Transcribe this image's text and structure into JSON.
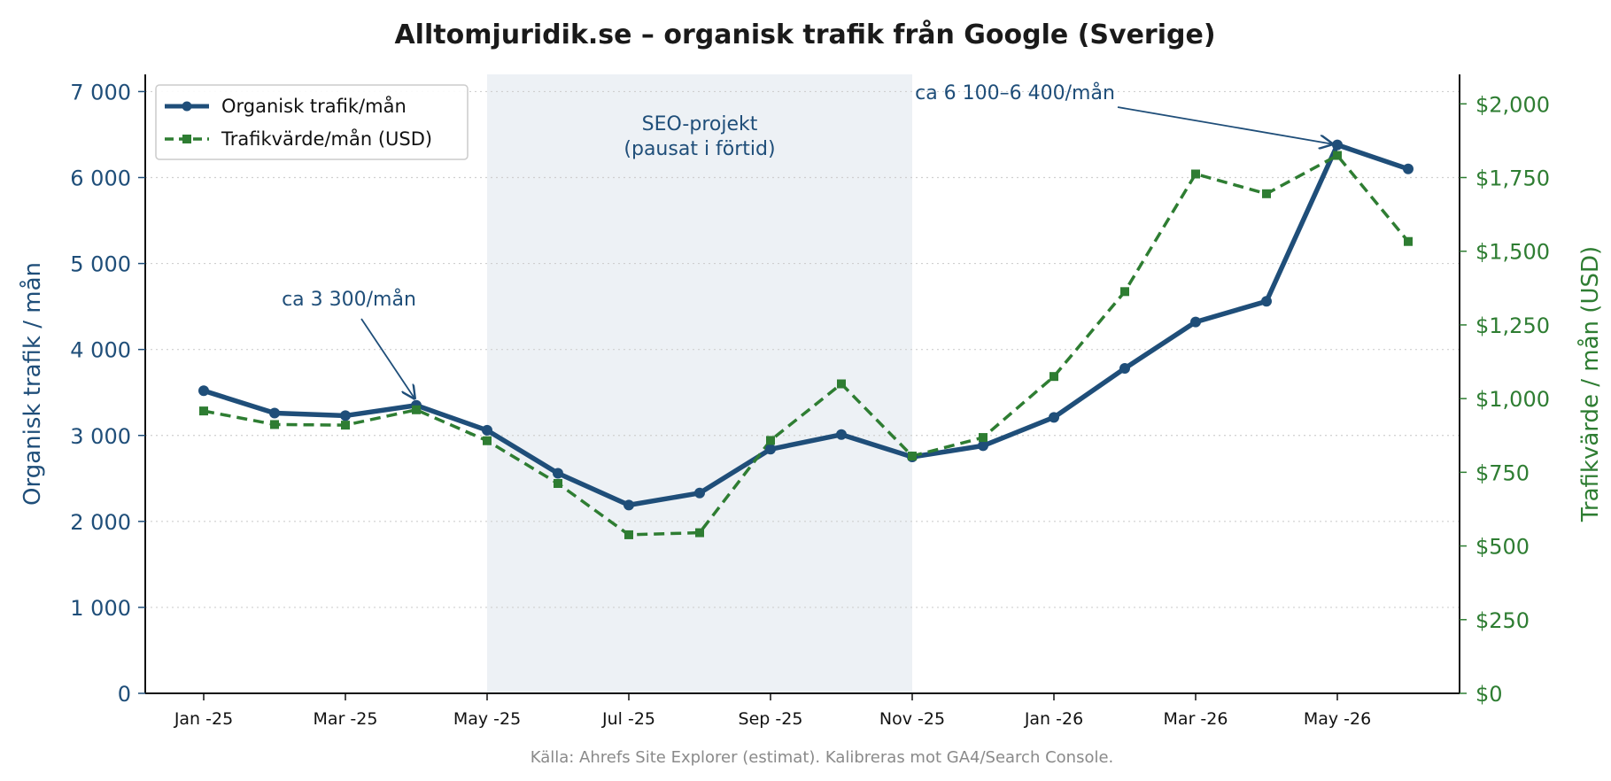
{
  "chart_data": {
    "type": "line",
    "title": "Alltomjuridik.se – organisk trafik från Google (Sverige)",
    "x": [
      "2025-01",
      "2025-02",
      "2025-03",
      "2025-04",
      "2025-05",
      "2025-06",
      "2025-07",
      "2025-08",
      "2025-09",
      "2025-10",
      "2025-11",
      "2025-12",
      "2026-01",
      "2026-02",
      "2026-03",
      "2026-04",
      "2026-05",
      "2026-06"
    ],
    "x_tick_labels": [
      "Jan -25",
      "Mar -25",
      "May -25",
      "Jul -25",
      "Sep -25",
      "Nov -25",
      "Jan -26",
      "Mar -26",
      "May -26"
    ],
    "ylabel": "Organisk trafik / mån",
    "ylabel_right": "Trafikvärde / mån (USD)",
    "ylim": [
      0,
      7200
    ],
    "ylim_right": [
      0,
      2100
    ],
    "y_ticks": [
      "0",
      "1 000",
      "2 000",
      "3 000",
      "4 000",
      "5 000",
      "6 000",
      "7 000"
    ],
    "y_ticks_right": [
      "$0",
      "$250",
      "$500",
      "$750",
      "$1,000",
      "$1,250",
      "$1,500",
      "$1,750",
      "$2,000"
    ],
    "grid": "horizontal dotted",
    "legend_position": "top-left",
    "series": [
      {
        "name": "Organisk trafik/mån",
        "axis": "left",
        "color": "#1f4e79",
        "style": "solid",
        "marker": "circle",
        "values": [
          3520,
          3260,
          3230,
          3350,
          3060,
          2560,
          2190,
          2330,
          2840,
          3010,
          2750,
          2880,
          3210,
          3780,
          4320,
          4560,
          6380,
          6100
        ]
      },
      {
        "name": "Trafikvärde/mån (USD)",
        "axis": "right",
        "color": "#2e7d32",
        "style": "dashed",
        "marker": "square",
        "values": [
          958,
          912,
          910,
          962,
          857,
          712,
          538,
          545,
          858,
          1050,
          805,
          868,
          1075,
          1363,
          1762,
          1695,
          1825,
          1533
        ]
      }
    ],
    "shaded_region": {
      "from": "2025-05",
      "to": "2025-11",
      "label_line1": "SEO-projekt",
      "label_line2": "(pausat i förtid)"
    },
    "annotations": [
      {
        "text": "ca 3 300/mån",
        "target_x": "2025-04",
        "target_y": 3350
      },
      {
        "text": "ca 6 100–6 400/mån",
        "target_x": "2026-05",
        "target_y": 6380
      }
    ],
    "source": "Källa: Ahrefs Site Explorer (estimat). Kalibreras mot GA4/Search Console."
  }
}
